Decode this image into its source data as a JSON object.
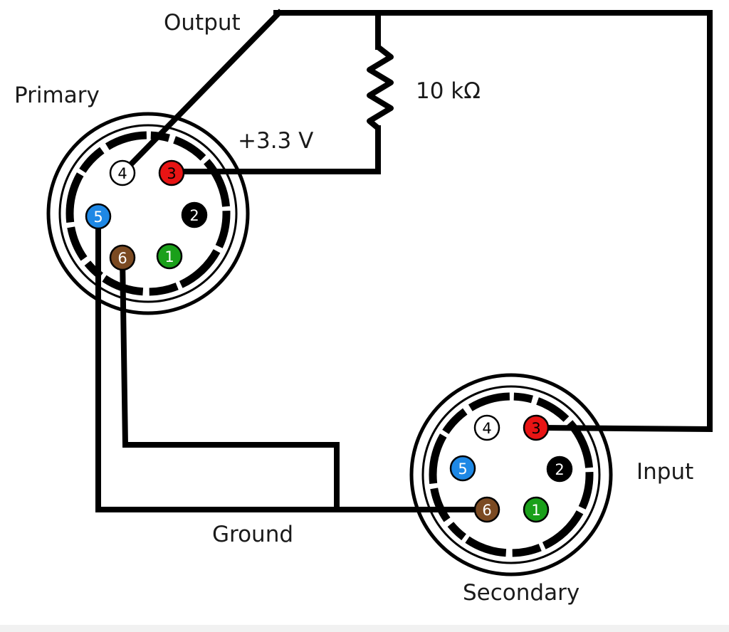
{
  "labels": {
    "output": "Output",
    "primary": "Primary",
    "resistor": "10 kΩ",
    "voltage": "+3.3 V",
    "ground": "Ground",
    "input": "Input",
    "secondary": "Secondary"
  },
  "connectors": {
    "primary": {
      "pins": [
        {
          "number": "4",
          "color": "#ffffff",
          "text_color": "#000000"
        },
        {
          "number": "3",
          "color": "#e81414",
          "text_color": "#000000"
        },
        {
          "number": "5",
          "color": "#1e88e5",
          "text_color": "#ffffff"
        },
        {
          "number": "2",
          "color": "#000000",
          "text_color": "#ffffff"
        },
        {
          "number": "6",
          "color": "#7b4a22",
          "text_color": "#ffffff"
        },
        {
          "number": "1",
          "color": "#1aa01a",
          "text_color": "#ffffff"
        }
      ]
    },
    "secondary": {
      "pins": [
        {
          "number": "4",
          "color": "#ffffff",
          "text_color": "#000000"
        },
        {
          "number": "3",
          "color": "#e81414",
          "text_color": "#000000"
        },
        {
          "number": "5",
          "color": "#1e88e5",
          "text_color": "#ffffff"
        },
        {
          "number": "2",
          "color": "#000000",
          "text_color": "#ffffff"
        },
        {
          "number": "6",
          "color": "#7b4a22",
          "text_color": "#ffffff"
        },
        {
          "number": "1",
          "color": "#1aa01a",
          "text_color": "#ffffff"
        }
      ]
    }
  }
}
